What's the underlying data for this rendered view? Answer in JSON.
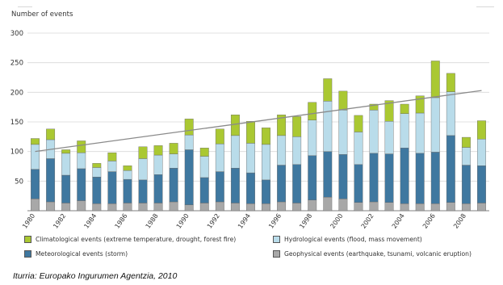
{
  "chart_data": {
    "type": "bar",
    "stacked": true,
    "ylabel": "Number of events",
    "ylim": [
      0,
      300
    ],
    "yticks": [
      50,
      100,
      150,
      200,
      250,
      300
    ],
    "categories": [
      "1980",
      "1981",
      "1982",
      "1983",
      "1984",
      "1985",
      "1986",
      "1987",
      "1988",
      "1989",
      "1990",
      "1991",
      "1992",
      "1993",
      "1994",
      "1995",
      "1996",
      "1997",
      "1998",
      "1999",
      "2000",
      "2001",
      "2002",
      "2003",
      "2004",
      "2005",
      "2006",
      "2007",
      "2008",
      "2009"
    ],
    "xtick_labels": [
      "1980",
      "1982",
      "1984",
      "1986",
      "1988",
      "1990",
      "1992",
      "1994",
      "1996",
      "1998",
      "2000",
      "2002",
      "2004",
      "2006",
      "2008"
    ],
    "series": [
      {
        "name": "Geophysical events (earthquake, tsunami, volcanic eruption)",
        "color": "#a8a8a8",
        "values": [
          20,
          15,
          13,
          17,
          12,
          12,
          13,
          13,
          13,
          15,
          10,
          13,
          15,
          13,
          12,
          12,
          15,
          13,
          18,
          23,
          20,
          14,
          15,
          14,
          12,
          12,
          12,
          14,
          12,
          13
        ]
      },
      {
        "name": "Meteorological events (storm)",
        "color": "#3f78a0",
        "values": [
          50,
          73,
          47,
          54,
          45,
          54,
          40,
          39,
          48,
          57,
          93,
          43,
          51,
          59,
          52,
          40,
          62,
          65,
          75,
          77,
          75,
          64,
          82,
          82,
          94,
          85,
          87,
          113,
          65,
          63
        ]
      },
      {
        "name": "Hydrological events (flood, mass movement)",
        "color": "#b9dcea",
        "values": [
          42,
          32,
          37,
          27,
          16,
          18,
          15,
          36,
          33,
          24,
          25,
          36,
          47,
          55,
          50,
          60,
          50,
          47,
          60,
          85,
          75,
          55,
          73,
          55,
          58,
          68,
          92,
          74,
          30,
          45
        ]
      },
      {
        "name": "Climatological events (extreme temperature, drought, forest fire)",
        "color": "#aac832",
        "values": [
          10,
          18,
          6,
          20,
          7,
          14,
          8,
          20,
          16,
          18,
          27,
          14,
          25,
          35,
          37,
          28,
          35,
          34,
          30,
          38,
          32,
          28,
          10,
          35,
          16,
          29,
          62,
          31,
          17,
          31
        ]
      }
    ],
    "trendline": {
      "start": [
        1980,
        100
      ],
      "end": [
        2009,
        203
      ]
    },
    "legend_order": [
      3,
      2,
      1,
      0
    ]
  },
  "source": "Iturria: Europako Ingurumen Agentzia, 2010"
}
